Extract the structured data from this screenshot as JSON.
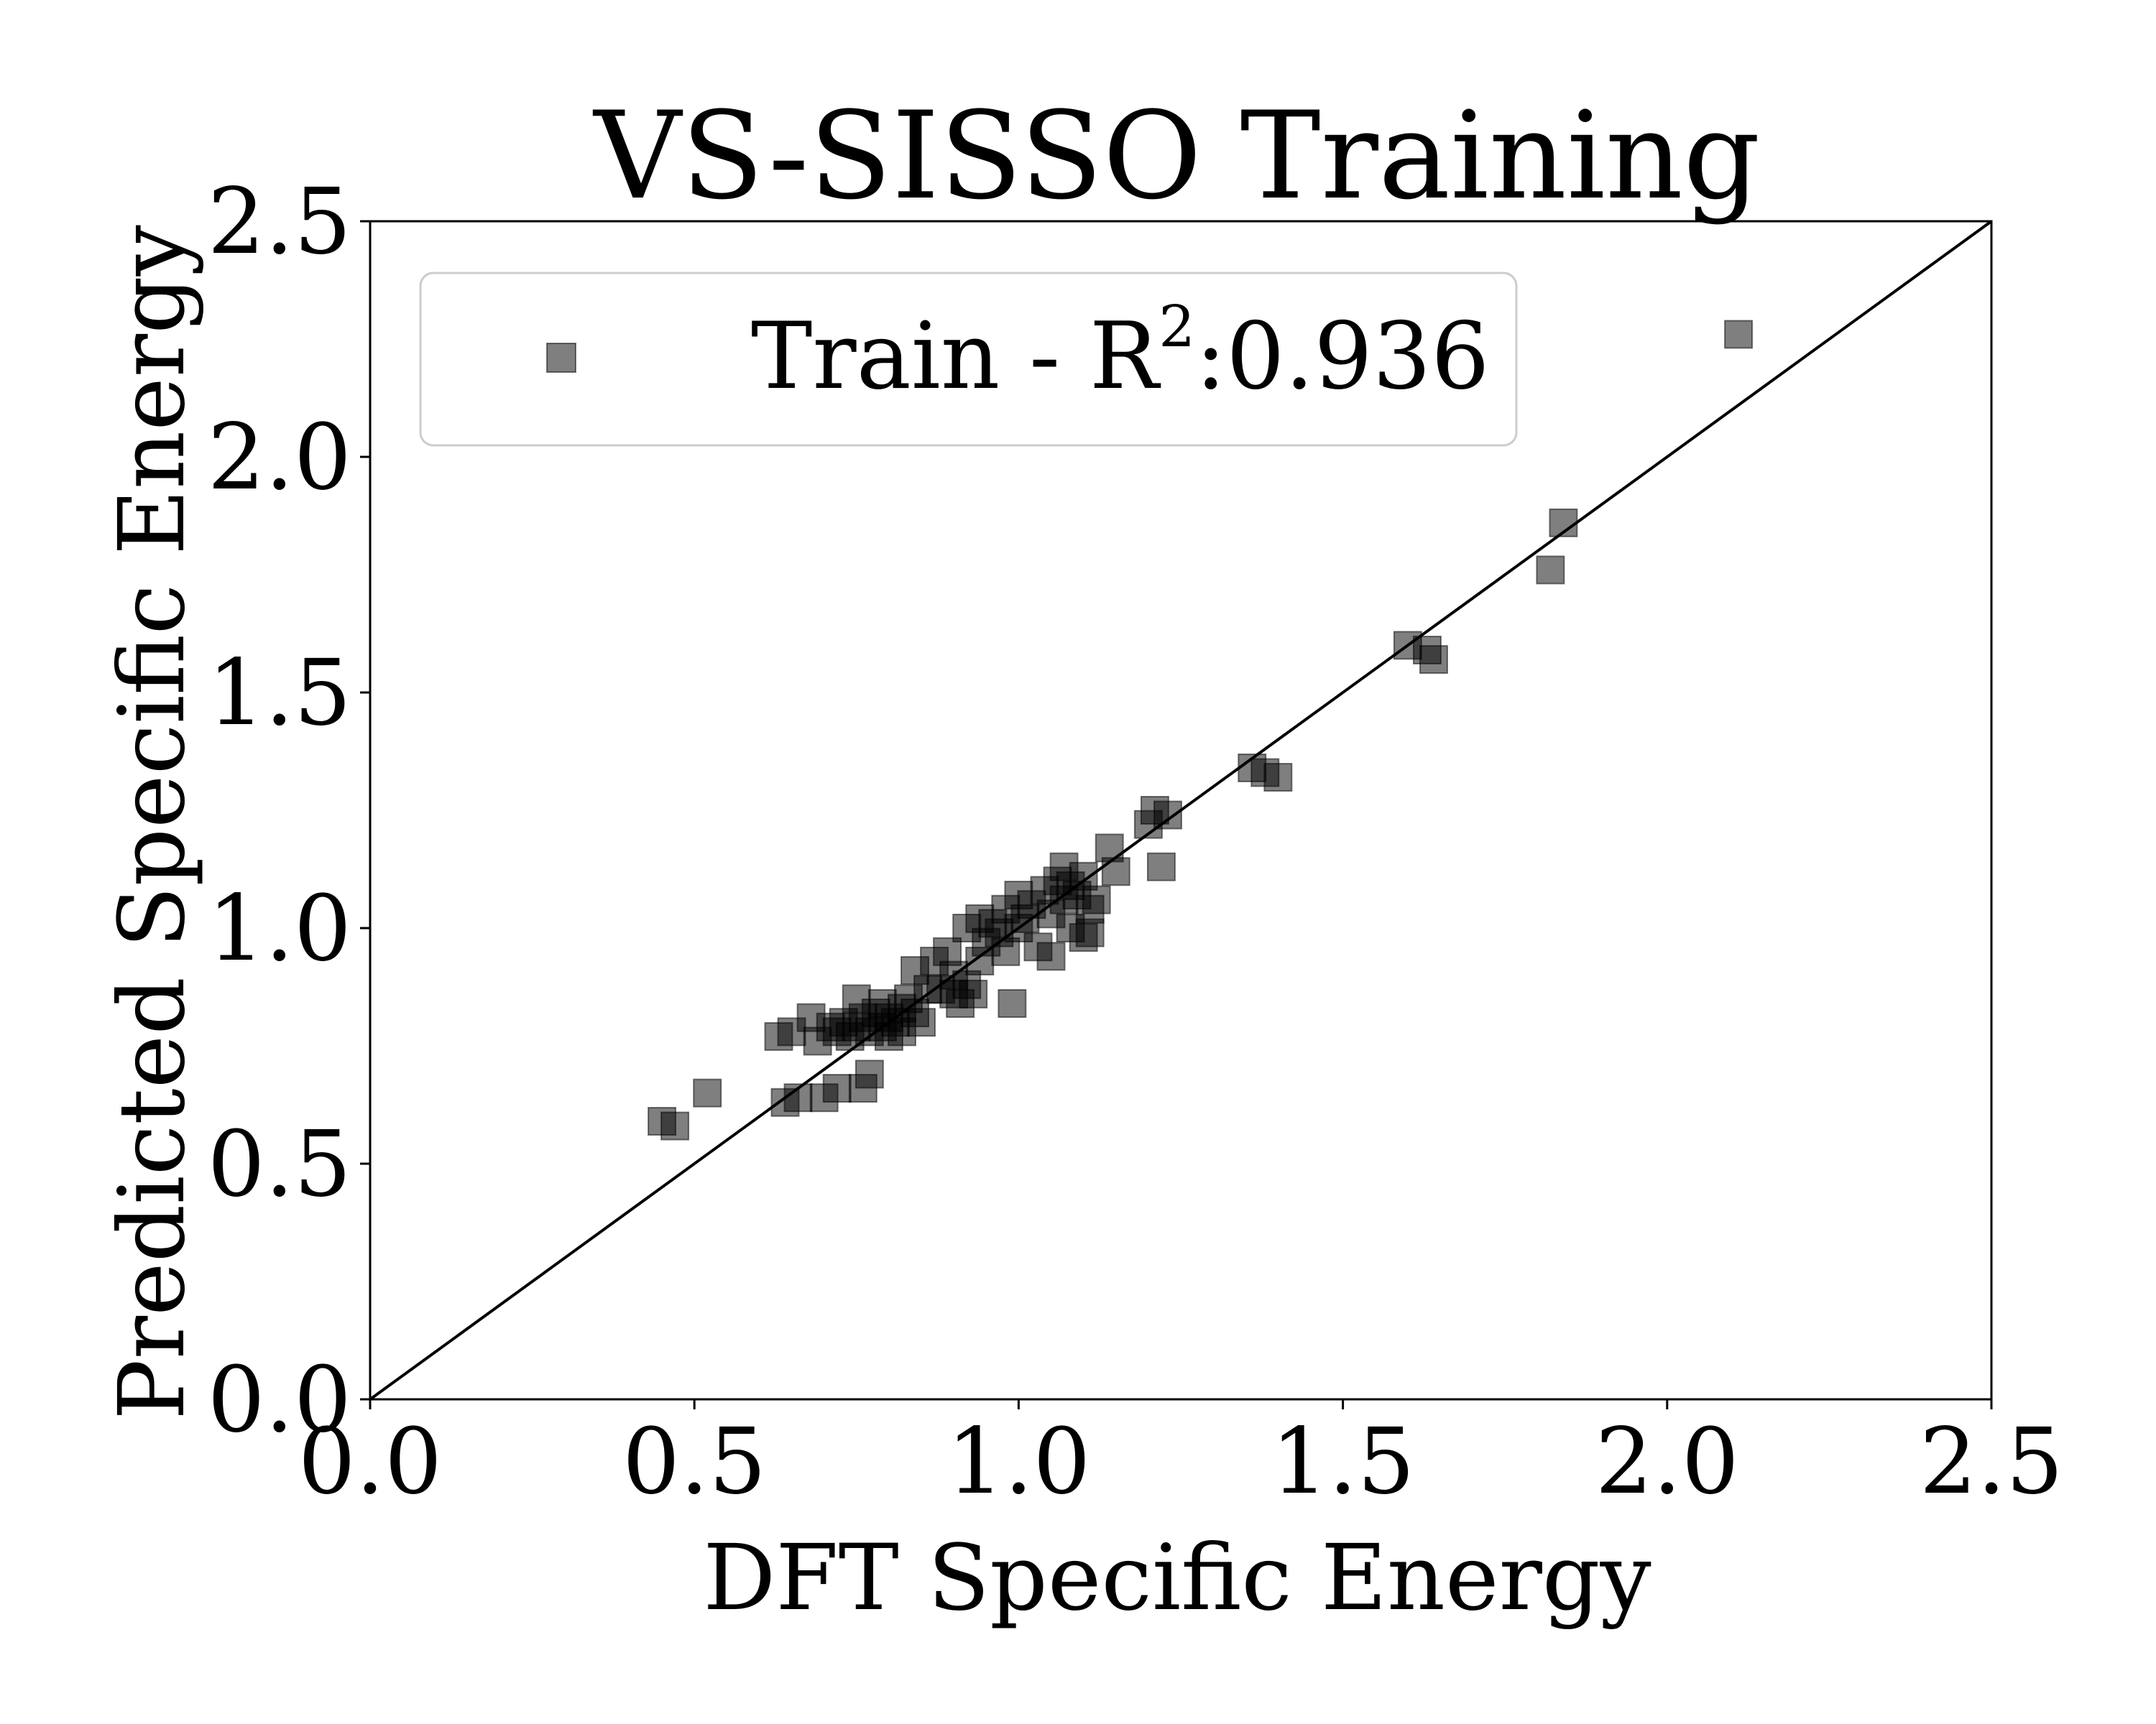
{
  "chart_data": {
    "type": "scatter",
    "title": "VS-SISSO Training",
    "xlabel": "DFT Specific Energy",
    "ylabel": "Predicted Specific Energy",
    "xlim": [
      0.0,
      2.5
    ],
    "ylim": [
      0.0,
      2.5
    ],
    "xticks": [
      "0.0",
      "0.5",
      "1.0",
      "1.5",
      "2.0",
      "2.5"
    ],
    "yticks": [
      "0.0",
      "0.5",
      "1.0",
      "1.5",
      "2.0",
      "2.5"
    ],
    "grid": false,
    "legend_position": "top-left",
    "reference_line": {
      "name": "y = x",
      "from": [
        0.0,
        0.0
      ],
      "to": [
        2.5,
        2.5
      ],
      "color": "#000000"
    },
    "series": [
      {
        "name": "Train - R",
        "legend_label": "Train - R",
        "legend_superscript": "2",
        "legend_value": ":0.936",
        "marker": "square",
        "color": "#000000",
        "opacity": 0.5,
        "points": [
          [
            0.45,
            0.59
          ],
          [
            0.47,
            0.58
          ],
          [
            0.52,
            0.65
          ],
          [
            0.63,
            0.77
          ],
          [
            0.65,
            0.78
          ],
          [
            0.64,
            0.63
          ],
          [
            0.66,
            0.64
          ],
          [
            0.68,
            0.81
          ],
          [
            0.69,
            0.76
          ],
          [
            0.7,
            0.64
          ],
          [
            0.71,
            0.79
          ],
          [
            0.72,
            0.66
          ],
          [
            0.72,
            0.78
          ],
          [
            0.73,
            0.8
          ],
          [
            0.74,
            0.77
          ],
          [
            0.75,
            0.79
          ],
          [
            0.75,
            0.85
          ],
          [
            0.76,
            0.81
          ],
          [
            0.76,
            0.66
          ],
          [
            0.77,
            0.69
          ],
          [
            0.77,
            0.78
          ],
          [
            0.78,
            0.82
          ],
          [
            0.79,
            0.79
          ],
          [
            0.79,
            0.84
          ],
          [
            0.8,
            0.77
          ],
          [
            0.8,
            0.81
          ],
          [
            0.81,
            0.8
          ],
          [
            0.82,
            0.83
          ],
          [
            0.82,
            0.78
          ],
          [
            0.83,
            0.85
          ],
          [
            0.84,
            0.82
          ],
          [
            0.84,
            0.91
          ],
          [
            0.85,
            0.8
          ],
          [
            0.86,
            0.87
          ],
          [
            0.87,
            0.93
          ],
          [
            0.88,
            0.87
          ],
          [
            0.89,
            0.95
          ],
          [
            0.9,
            0.86
          ],
          [
            0.9,
            0.9
          ],
          [
            0.91,
            0.84
          ],
          [
            0.92,
            0.88
          ],
          [
            0.92,
            1.0
          ],
          [
            0.93,
            0.86
          ],
          [
            0.94,
            0.93
          ],
          [
            0.94,
            1.02
          ],
          [
            0.95,
            0.97
          ],
          [
            0.96,
            1.01
          ],
          [
            0.97,
            0.99
          ],
          [
            0.98,
            0.95
          ],
          [
            0.98,
            1.04
          ],
          [
            0.99,
            0.84
          ],
          [
            1.0,
            1.0
          ],
          [
            1.0,
            1.07
          ],
          [
            1.01,
            1.02
          ],
          [
            1.02,
            1.05
          ],
          [
            1.03,
            0.96
          ],
          [
            1.04,
            1.08
          ],
          [
            1.05,
            0.94
          ],
          [
            1.05,
            1.03
          ],
          [
            1.06,
            1.1
          ],
          [
            1.07,
            1.06
          ],
          [
            1.07,
            1.13
          ],
          [
            1.08,
            1.0
          ],
          [
            1.08,
            1.09
          ],
          [
            1.09,
            1.07
          ],
          [
            1.1,
            0.98
          ],
          [
            1.1,
            1.11
          ],
          [
            1.11,
            1.04
          ],
          [
            1.11,
            0.99
          ],
          [
            1.12,
            1.06
          ],
          [
            1.14,
            1.17
          ],
          [
            1.15,
            1.12
          ],
          [
            1.2,
            1.22
          ],
          [
            1.21,
            1.25
          ],
          [
            1.22,
            1.13
          ],
          [
            1.23,
            1.24
          ],
          [
            1.36,
            1.34
          ],
          [
            1.38,
            1.33
          ],
          [
            1.4,
            1.32
          ],
          [
            1.6,
            1.6
          ],
          [
            1.63,
            1.59
          ],
          [
            1.64,
            1.57
          ],
          [
            1.82,
            1.76
          ],
          [
            1.84,
            1.86
          ],
          [
            2.11,
            2.26
          ]
        ]
      }
    ]
  }
}
